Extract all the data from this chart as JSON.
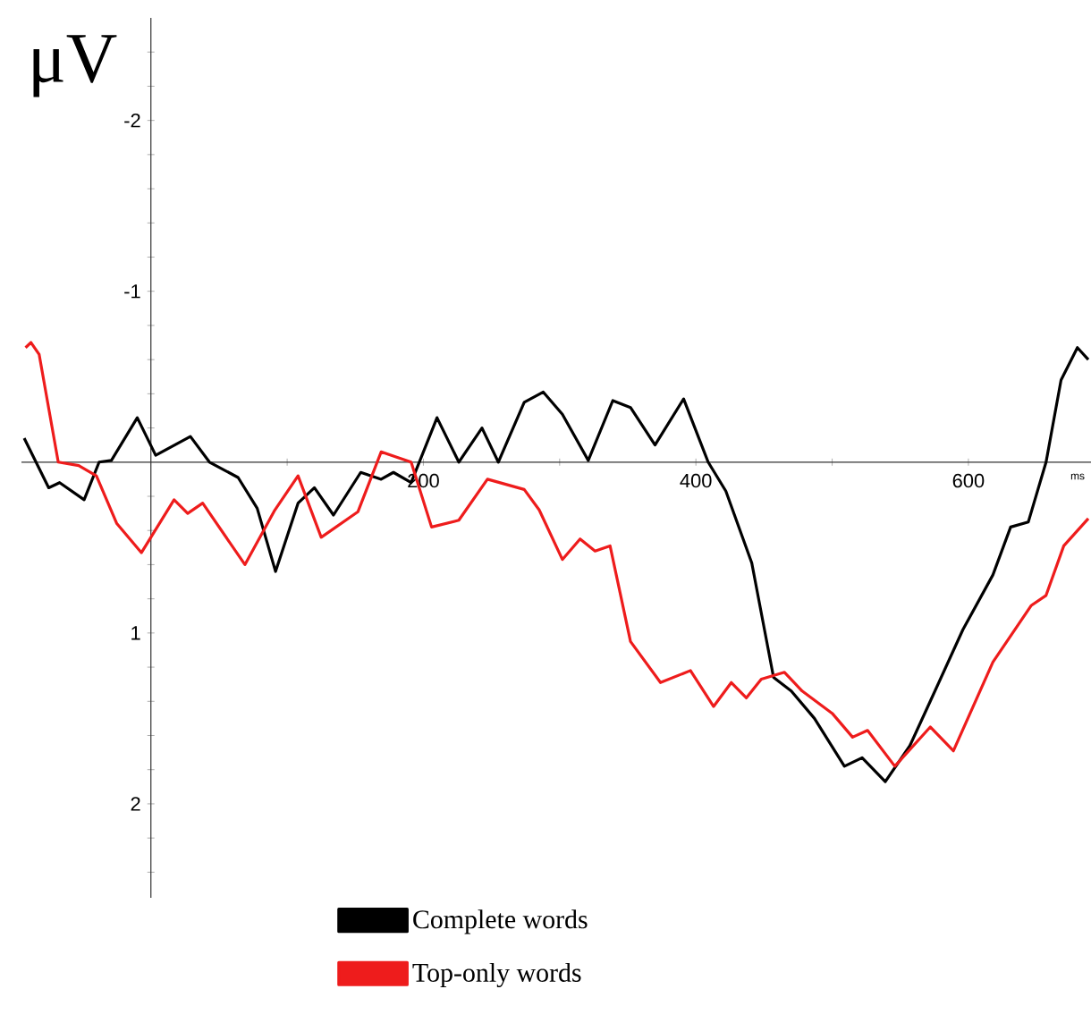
{
  "chart_data": {
    "type": "line",
    "xlabel": "ms",
    "ylabel": "μV",
    "xlim": [
      -95,
      690
    ],
    "ylim": [
      2.55,
      -2.6
    ],
    "xticks": [
      {
        "value": 100,
        "label": null
      },
      200,
      {
        "value": 300,
        "label": null
      },
      400,
      {
        "value": 500,
        "label": null
      },
      600
    ],
    "yticks": [
      {
        "value": -2.4,
        "label": null
      },
      {
        "value": -2.2,
        "label": null
      },
      -2,
      {
        "value": -1.8,
        "label": null
      },
      {
        "value": -1.6,
        "label": null
      },
      {
        "value": -1.4,
        "label": null
      },
      {
        "value": -1.2,
        "label": null
      },
      -1,
      {
        "value": -0.8,
        "label": null
      },
      {
        "value": -0.6,
        "label": null
      },
      {
        "value": -0.4,
        "label": null
      },
      {
        "value": -0.2,
        "label": null
      },
      {
        "value": 0.2,
        "label": null
      },
      {
        "value": 0.4,
        "label": null
      },
      {
        "value": 0.6,
        "label": null
      },
      {
        "value": 0.8,
        "label": null
      },
      1,
      {
        "value": 1.2,
        "label": null
      },
      {
        "value": 1.4,
        "label": null
      },
      {
        "value": 1.6,
        "label": null
      },
      {
        "value": 1.8,
        "label": null
      },
      2,
      {
        "value": 2.2,
        "label": null
      },
      {
        "value": 2.4,
        "label": null
      }
    ],
    "legend": "bottom",
    "grid": false,
    "marker": "none",
    "line_style": "solid",
    "series": [
      {
        "name": "Complete words",
        "color": "#000000",
        "x": [
          -93,
          -75,
          -67,
          -49,
          -38,
          -29,
          -10,
          3.5,
          29,
          43,
          64,
          78,
          91.5,
          108,
          120,
          134,
          154,
          169,
          178,
          191,
          210,
          226,
          243,
          255,
          274,
          288,
          302,
          321,
          339,
          352,
          370,
          391,
          409,
          422,
          441,
          457,
          470,
          487,
          509,
          522,
          539,
          557,
          572,
          596,
          618,
          631,
          644,
          657,
          668,
          680,
          688
        ],
        "values": [
          -0.14,
          0.15,
          0.12,
          0.22,
          0.0,
          -0.01,
          -0.26,
          -0.04,
          -0.15,
          0.0,
          0.09,
          0.27,
          0.64,
          0.24,
          0.15,
          0.31,
          0.06,
          0.1,
          0.06,
          0.12,
          -0.26,
          0.0,
          -0.2,
          0.0,
          -0.35,
          -0.41,
          -0.28,
          -0.01,
          -0.36,
          -0.32,
          -0.1,
          -0.37,
          0.0,
          0.17,
          0.59,
          1.26,
          1.34,
          1.5,
          1.78,
          1.73,
          1.87,
          1.66,
          1.4,
          0.98,
          0.66,
          0.38,
          0.35,
          0.0,
          -0.48,
          -0.67,
          -0.6
        ]
      },
      {
        "name": "Top-only words",
        "color": "#ee1c1c",
        "x": [
          -92,
          -88,
          -82,
          -68,
          -53,
          -40,
          -25,
          -7,
          17,
          27,
          38,
          69,
          91,
          108,
          125,
          152,
          169,
          191,
          206,
          226,
          247,
          274,
          285,
          302,
          315,
          326,
          337,
          352,
          374,
          396,
          413,
          426,
          437,
          448,
          465,
          478,
          500,
          515,
          526,
          546,
          572,
          589,
          618,
          646,
          657,
          670,
          688
        ],
        "values": [
          -0.67,
          -0.7,
          -0.63,
          0.0,
          0.02,
          0.08,
          0.36,
          0.53,
          0.22,
          0.3,
          0.24,
          0.6,
          0.28,
          0.08,
          0.44,
          0.29,
          -0.06,
          0.0,
          0.38,
          0.34,
          0.1,
          0.16,
          0.28,
          0.57,
          0.45,
          0.52,
          0.49,
          1.05,
          1.29,
          1.22,
          1.43,
          1.29,
          1.38,
          1.27,
          1.23,
          1.34,
          1.47,
          1.61,
          1.57,
          1.78,
          1.55,
          1.69,
          1.17,
          0.84,
          0.78,
          0.49,
          0.33
        ]
      }
    ]
  }
}
